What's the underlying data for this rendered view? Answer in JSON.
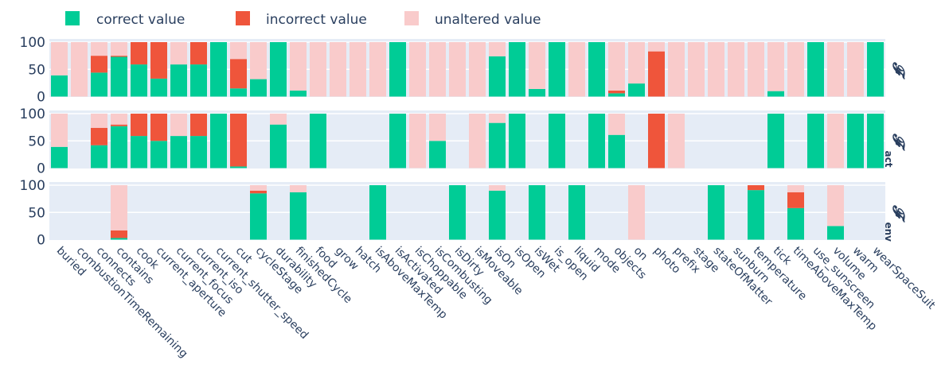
{
  "chart_data": {
    "type": "bar",
    "stacked": true,
    "legend": {
      "placement": "top",
      "entries": [
        "correct value",
        "incorrect value",
        "unaltered value"
      ]
    },
    "colors": {
      "correct value": "#00cc96",
      "incorrect value": "#ef553b",
      "unaltered value": "#f9cbcb",
      "plot_bg": "#e5ecf6",
      "text": "#2a3f5f"
    },
    "categories": [
      "buried",
      "combustionTimeRemaining",
      "connects",
      "contains",
      "cook",
      "current_aperture",
      "current_focus",
      "current_iso",
      "current_shutter_speed",
      "cut",
      "cycleStage",
      "durability",
      "finishedCycle",
      "food",
      "grow",
      "hatch",
      "isAboveMaxTemp",
      "isActivated",
      "isChoppable",
      "isCombusting",
      "isDirty",
      "isMoveable",
      "isOn",
      "isOpen",
      "isWet",
      "is_open",
      "liquid",
      "mode",
      "objects",
      "on",
      "photo",
      "prefix",
      "stage",
      "stateOfMatter",
      "sunburn",
      "temperature",
      "tick",
      "timeAboveMaxTemp",
      "use_sunscreen",
      "volume",
      "warm",
      "wearSpaceSuit"
    ],
    "yticks": [
      "0",
      "50",
      "100"
    ],
    "ylim": [
      0,
      100
    ],
    "grid": true,
    "panels": [
      {
        "label": "𝓕",
        "sub": "",
        "series": [
          {
            "name": "correct value",
            "values": [
              39,
              0,
              44,
              73,
              59,
              33,
              59,
              59,
              100,
              15,
              32,
              100,
              11,
              0,
              0,
              0,
              0,
              100,
              0,
              0,
              0,
              0,
              74,
              100,
              14,
              100,
              0,
              100,
              6,
              24,
              0,
              0,
              0,
              0,
              0,
              0,
              10,
              0,
              100,
              0,
              0,
              100
            ]
          },
          {
            "name": "incorrect value",
            "values": [
              0,
              0,
              31,
              2,
              41,
              67,
              0,
              41,
              0,
              54,
              0,
              0,
              0,
              0,
              0,
              0,
              0,
              0,
              0,
              0,
              0,
              0,
              0,
              0,
              0,
              0,
              0,
              0,
              5,
              0,
              83,
              0,
              0,
              0,
              0,
              0,
              0,
              0,
              0,
              0,
              0,
              0
            ]
          },
          {
            "name": "unaltered value",
            "values": [
              61,
              100,
              25,
              25,
              0,
              0,
              41,
              0,
              0,
              31,
              68,
              0,
              89,
              100,
              100,
              100,
              100,
              0,
              100,
              100,
              100,
              100,
              26,
              0,
              86,
              0,
              100,
              0,
              89,
              76,
              17,
              100,
              100,
              100,
              100,
              100,
              90,
              100,
              0,
              100,
              100,
              0
            ]
          }
        ]
      },
      {
        "label": "𝓕",
        "sub": "act",
        "series": [
          {
            "name": "correct value",
            "values": [
              39,
              0,
              42,
              77,
              59,
              50,
              59,
              59,
              100,
              3,
              0,
              80,
              0,
              100,
              0,
              0,
              0,
              100,
              0,
              50,
              0,
              0,
              83,
              100,
              0,
              100,
              0,
              100,
              61,
              0,
              0,
              0,
              0,
              0,
              0,
              0,
              100,
              0,
              100,
              0,
              100,
              100
            ]
          },
          {
            "name": "incorrect value",
            "values": [
              0,
              0,
              32,
              3,
              41,
              50,
              0,
              41,
              0,
              97,
              0,
              0,
              0,
              0,
              0,
              0,
              0,
              0,
              0,
              0,
              0,
              0,
              0,
              0,
              0,
              0,
              0,
              0,
              0,
              0,
              100,
              0,
              0,
              0,
              0,
              0,
              0,
              0,
              0,
              0,
              0,
              0
            ]
          },
          {
            "name": "unaltered value",
            "values": [
              61,
              0,
              26,
              20,
              0,
              0,
              41,
              0,
              0,
              0,
              0,
              20,
              0,
              0,
              0,
              0,
              0,
              0,
              100,
              50,
              0,
              100,
              17,
              0,
              0,
              0,
              0,
              0,
              39,
              0,
              0,
              100,
              0,
              0,
              0,
              0,
              0,
              0,
              0,
              100,
              0,
              0
            ]
          }
        ]
      },
      {
        "label": "𝓕",
        "sub": "env",
        "series": [
          {
            "name": "correct value",
            "values": [
              0,
              0,
              0,
              3,
              0,
              0,
              0,
              0,
              0,
              0,
              85,
              0,
              87,
              0,
              0,
              0,
              100,
              0,
              0,
              0,
              100,
              0,
              90,
              0,
              100,
              0,
              100,
              0,
              0,
              0,
              0,
              0,
              0,
              100,
              0,
              91,
              0,
              58,
              0,
              25,
              0,
              0
            ]
          },
          {
            "name": "incorrect value",
            "values": [
              0,
              0,
              0,
              14,
              0,
              0,
              0,
              0,
              0,
              0,
              5,
              0,
              0,
              0,
              0,
              0,
              0,
              0,
              0,
              0,
              0,
              0,
              0,
              0,
              0,
              0,
              0,
              0,
              0,
              0,
              0,
              0,
              0,
              0,
              0,
              9,
              0,
              29,
              0,
              0,
              0,
              0
            ]
          },
          {
            "name": "unaltered value",
            "values": [
              0,
              0,
              0,
              83,
              0,
              0,
              0,
              0,
              0,
              0,
              10,
              0,
              13,
              0,
              0,
              0,
              0,
              0,
              0,
              0,
              0,
              0,
              10,
              0,
              0,
              0,
              0,
              0,
              0,
              100,
              0,
              0,
              0,
              0,
              0,
              0,
              0,
              13,
              0,
              75,
              0,
              0
            ]
          }
        ]
      }
    ]
  }
}
